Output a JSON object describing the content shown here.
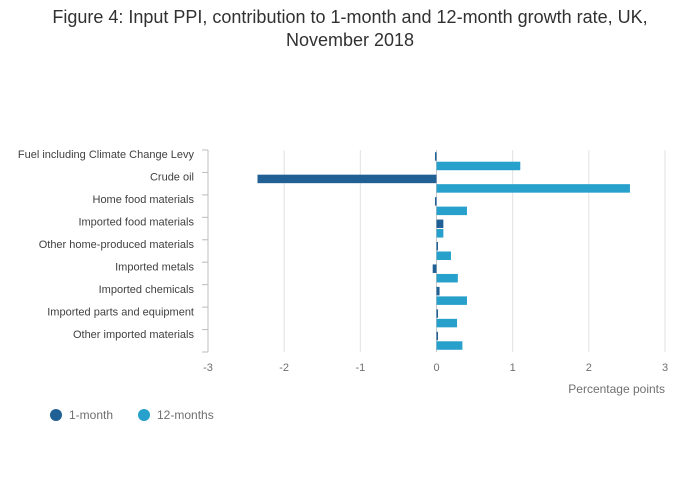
{
  "chart_data": {
    "type": "bar",
    "orientation": "horizontal",
    "title_lines": [
      "Figure 4: Input PPI, contribution to 1-month and 12-month growth rate, UK,",
      "November 2018"
    ],
    "xlabel": "Percentage points",
    "ylabel": "",
    "xlim": [
      -3,
      3
    ],
    "xticks": [
      "-3",
      "-2",
      "-1",
      "0",
      "1",
      "2",
      "3"
    ],
    "grid": true,
    "legend_position": "bottom-left",
    "categories": [
      "Fuel including Climate Change Levy",
      "Crude oil",
      "Home food materials",
      "Imported food materials",
      "Other home-produced materials",
      "Imported metals",
      "Imported chemicals",
      "Imported parts and equipment",
      "Other imported materials"
    ],
    "series": [
      {
        "name": "1-month",
        "color": "#206095",
        "values": [
          -0.02,
          -2.35,
          -0.02,
          0.09,
          0.01,
          -0.05,
          0.04,
          0.0,
          0.01
        ]
      },
      {
        "name": "12-months",
        "color": "#27a0cc",
        "values": [
          1.1,
          2.54,
          0.4,
          0.09,
          0.19,
          0.28,
          0.4,
          0.27,
          0.34
        ]
      }
    ]
  }
}
